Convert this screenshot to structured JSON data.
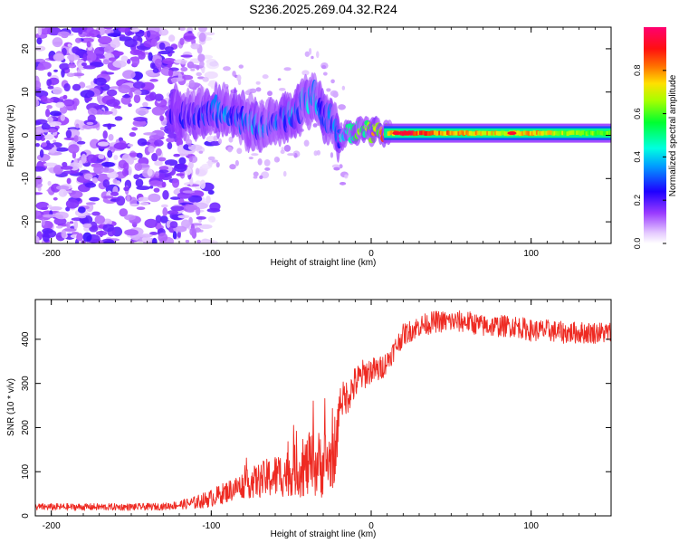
{
  "title": "S236.2025.269.04.32.R24",
  "colors": {
    "snr_line": "#ee2a22",
    "frame": "#000000",
    "background": "#ffffff"
  },
  "chart_data": [
    {
      "type": "heatmap",
      "name": "spectrogram",
      "xlabel": "Height of straight line (km)",
      "ylabel": "Frequency (Hz)",
      "xlim": [
        -210,
        150
      ],
      "ylim": [
        -25,
        25
      ],
      "xticks": [
        -200,
        -100,
        0,
        100
      ],
      "xtick_labels": [
        "-200",
        "-100",
        "0",
        "100"
      ],
      "yticks": [
        -20,
        -10,
        0,
        10,
        20
      ],
      "ytick_labels": [
        "-20",
        "-10",
        "0",
        "10",
        "20"
      ],
      "colorbar": {
        "label": "Normalized spectral amplitude",
        "range": [
          0,
          1
        ],
        "ticks": [
          0.0,
          0.2,
          0.4,
          0.6,
          0.8
        ],
        "tick_labels": [
          "0.0",
          "0.2",
          "0.4",
          "0.6",
          "0.8"
        ],
        "colormap": "rainbow (white-violet-blue-cyan-green-yellow-red-magenta)"
      },
      "ridge": {
        "description": "dominant frequency ridge vs height",
        "x": [
          -120,
          -110,
          -100,
          -90,
          -80,
          -70,
          -60,
          -50,
          -40,
          -35,
          -30,
          -25,
          -20,
          -15,
          -10,
          -5,
          0,
          5,
          10,
          20,
          40,
          60,
          80,
          100,
          120,
          150
        ],
        "y": [
          5,
          4.5,
          5,
          6,
          3.5,
          2.5,
          3,
          4,
          8,
          9,
          5,
          3,
          -1,
          1,
          0.5,
          1.5,
          1,
          1.5,
          0.5,
          0.5,
          0.5,
          0.5,
          0.5,
          0.5,
          0.5,
          0.5
        ],
        "amplitude": [
          0.2,
          0.25,
          0.3,
          0.35,
          0.3,
          0.35,
          0.3,
          0.35,
          0.4,
          0.35,
          0.3,
          0.3,
          0.35,
          0.45,
          0.55,
          0.6,
          0.65,
          0.7,
          0.75,
          0.95,
          0.85,
          0.8,
          0.75,
          0.8,
          0.7,
          0.65
        ]
      },
      "noise_region": {
        "x_from": -210,
        "x_to": -120,
        "description": "scattered low-amplitude noise"
      }
    },
    {
      "type": "line",
      "name": "snr",
      "xlabel": "Height of straight line (km)",
      "ylabel": "SNR (10 * v/v)",
      "xlim": [
        -210,
        150
      ],
      "ylim": [
        0,
        490
      ],
      "xticks": [
        -200,
        -100,
        0,
        100
      ],
      "xtick_labels": [
        "-200",
        "-100",
        "0",
        "100"
      ],
      "yticks": [
        0,
        100,
        200,
        300,
        400
      ],
      "ytick_labels": [
        "0",
        "100",
        "200",
        "300",
        "400"
      ],
      "series": [
        {
          "name": "SNR",
          "x": [
            -210,
            -180,
            -150,
            -130,
            -120,
            -110,
            -100,
            -90,
            -80,
            -70,
            -60,
            -50,
            -40,
            -30,
            -22,
            -20,
            -15,
            -10,
            -5,
            0,
            5,
            10,
            15,
            20,
            25,
            30,
            40,
            50,
            60,
            70,
            80,
            90,
            100,
            110,
            120,
            130,
            140,
            150
          ],
          "values": [
            20,
            20,
            20,
            21,
            25,
            30,
            40,
            55,
            70,
            80,
            90,
            100,
            110,
            120,
            130,
            260,
            270,
            300,
            320,
            330,
            330,
            350,
            380,
            410,
            420,
            430,
            440,
            440,
            440,
            430,
            430,
            430,
            420,
            420,
            415,
            415,
            415,
            415
          ],
          "noise_amplitude": [
            8,
            8,
            8,
            8,
            10,
            15,
            20,
            25,
            30,
            40,
            50,
            55,
            70,
            80,
            60,
            40,
            40,
            40,
            35,
            30,
            30,
            25,
            25,
            25,
            25,
            25,
            25,
            25,
            25,
            25,
            25,
            25,
            25,
            25,
            25,
            25,
            25,
            25
          ]
        }
      ]
    }
  ]
}
